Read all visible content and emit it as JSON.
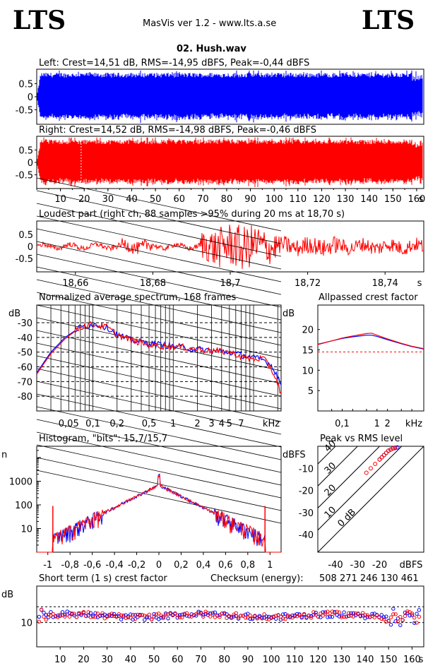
{
  "header": {
    "logo_left": "LTS",
    "logo_right": "LTS",
    "app_title": "MasVis ver 1.2 - www.lts.a.se",
    "file_name": "02. Hush.wav"
  },
  "colors": {
    "left": "#0000ff",
    "right": "#ff0000",
    "grid": "#000000"
  },
  "chart_data": [
    {
      "id": "left-waveform",
      "type": "area",
      "title": "Left: Crest=14,51 dB, RMS=-14,95 dBFS, Peak=-0,44 dBFS",
      "yticks": [
        "0.5",
        "0",
        "-0.5"
      ],
      "ylim": [
        -1,
        1
      ],
      "xlim": [
        0,
        163
      ],
      "peak": 0.95,
      "color": "#0000ff"
    },
    {
      "id": "right-waveform",
      "type": "area",
      "title": "Right: Crest=14,52 dB, RMS=-14,98 dBFS, Peak=-0,46 dBFS",
      "yticks": [
        "0.5",
        "0",
        "-0.5"
      ],
      "ylim": [
        -1,
        1
      ],
      "xlim": [
        0,
        163
      ],
      "xticks": [
        "10",
        "20",
        "30",
        "40",
        "50",
        "60",
        "70",
        "80",
        "90",
        "100",
        "110",
        "120",
        "130",
        "140",
        "150",
        "160"
      ],
      "xunit": "s",
      "marker_x": 18.7,
      "color": "#ff0000"
    },
    {
      "id": "loudest-part",
      "type": "line",
      "title": "Loudest part (right ch, 88 samples >95% during 20 ms at 18,70 s)",
      "yticks": [
        "0.5",
        "0",
        "-0.5"
      ],
      "ylim": [
        -1,
        1
      ],
      "xlim": [
        18.65,
        18.75
      ],
      "xticks": [
        "18,66",
        "18,68",
        "18,7",
        "18,72",
        "18,74"
      ],
      "xunit": "s",
      "color": "#ff0000"
    },
    {
      "id": "avg-spectrum",
      "type": "line",
      "title": "Normalized average spectrum, 168 frames",
      "ylabel": "dB",
      "yticks": [
        "-30",
        "-40",
        "-50",
        "-60",
        "-70",
        "-80"
      ],
      "ylim": [
        -90,
        -18
      ],
      "xticks": [
        "0,05",
        "0,1",
        "0,2",
        "0,5",
        "1",
        "2",
        "3",
        "4",
        "5",
        "7"
      ],
      "xunit": "kHz",
      "xlim": [
        0.02,
        22
      ],
      "series": [
        {
          "name": "left",
          "x": [
            0.02,
            0.03,
            0.045,
            0.07,
            0.1,
            0.15,
            0.2,
            0.3,
            0.5,
            0.7,
            1,
            1.5,
            2,
            3,
            5,
            7,
            10,
            13,
            16,
            19,
            22
          ],
          "values": [
            -64,
            -50,
            -40,
            -33,
            -31,
            -33,
            -38,
            -42,
            -44,
            -45,
            -46,
            -47,
            -48,
            -49,
            -50,
            -52,
            -54,
            -55,
            -58,
            -64,
            -72
          ]
        },
        {
          "name": "right",
          "x": [
            0.02,
            0.03,
            0.045,
            0.07,
            0.1,
            0.15,
            0.2,
            0.3,
            0.5,
            0.7,
            1,
            1.5,
            2,
            3,
            5,
            7,
            10,
            13,
            16,
            19,
            22
          ],
          "values": [
            -65,
            -51,
            -41,
            -33,
            -31,
            -33,
            -38,
            -42,
            -45,
            -46,
            -46,
            -47,
            -48,
            -49,
            -50,
            -53,
            -55,
            -54,
            -60,
            -68,
            -78
          ]
        }
      ]
    },
    {
      "id": "allpassed-crest",
      "type": "line",
      "title": "Allpassed crest factor",
      "ylabel": "dB",
      "yticks": [
        "20",
        "15",
        "10",
        "5"
      ],
      "ylim": [
        0,
        26
      ],
      "xticks": [
        "0,1",
        "1",
        "2"
      ],
      "xunit": "kHz",
      "xlim": [
        0.02,
        22
      ],
      "reference": 14.5,
      "series": [
        {
          "name": "left",
          "x": [
            0.02,
            0.05,
            0.1,
            0.2,
            0.5,
            0.7,
            1,
            2,
            5,
            10,
            22
          ],
          "values": [
            16.4,
            17.2,
            17.8,
            18.2,
            18.6,
            18.6,
            18.3,
            17.5,
            16.5,
            15.8,
            15.2
          ]
        },
        {
          "name": "right",
          "x": [
            0.02,
            0.05,
            0.1,
            0.2,
            0.5,
            0.7,
            1,
            2,
            5,
            10,
            22
          ],
          "values": [
            16.3,
            17.2,
            17.9,
            18.4,
            19.0,
            19.1,
            18.6,
            17.7,
            16.6,
            15.9,
            15.3
          ]
        }
      ]
    },
    {
      "id": "histogram",
      "type": "line",
      "title": "Histogram, \"bits\": 15,7/15,7",
      "ylabel": "n",
      "yticks": [
        "1000",
        "100",
        "10"
      ],
      "ylim": [
        1,
        30000
      ],
      "xticks": [
        "-1",
        "-0,8",
        "-0,6",
        "-0,4",
        "-0,2",
        "0",
        "0,2",
        "0,4",
        "0,6",
        "0,8",
        "1"
      ],
      "xlim": [
        -1.1,
        1.1
      ],
      "series": [
        {
          "name": "left",
          "x": [
            -0.95,
            -0.9,
            -0.8,
            -0.6,
            -0.4,
            -0.2,
            -0.1,
            0,
            0.1,
            0.2,
            0.4,
            0.6,
            0.8,
            0.9,
            0.95
          ],
          "values": [
            3,
            6,
            10,
            25,
            80,
            300,
            500,
            800,
            500,
            300,
            80,
            25,
            10,
            6,
            3
          ]
        },
        {
          "name": "right",
          "x": [
            -0.96,
            -0.9,
            -0.8,
            -0.6,
            -0.4,
            -0.2,
            -0.1,
            0,
            0.1,
            0.2,
            0.4,
            0.6,
            0.8,
            0.9,
            0.96
          ],
          "values": [
            3,
            6,
            10,
            25,
            80,
            300,
            500,
            800,
            500,
            300,
            80,
            25,
            10,
            6,
            3
          ]
        }
      ]
    },
    {
      "id": "peak-vs-rms",
      "type": "scatter",
      "title": "Peak vs RMS level",
      "ylabel": "dBFS",
      "xunit": "dBFS",
      "yticks": [
        "-10",
        "-20",
        "-30",
        "-40"
      ],
      "xticks": [
        "-40",
        "-30",
        "-20"
      ],
      "xlim": [
        -48,
        0
      ],
      "ylim": [
        -48,
        0
      ],
      "diagonals": [
        "0 dB",
        "10",
        "20",
        "30",
        "40"
      ],
      "series": [
        {
          "name": "left",
          "x": [
            -20,
            -19,
            -18,
            -17,
            -16,
            -15,
            -14,
            -13,
            -12
          ],
          "values": [
            -6,
            -5,
            -4,
            -3,
            -2,
            -1.5,
            -1,
            -0.8,
            -0.5
          ]
        },
        {
          "name": "right",
          "x": [
            -26,
            -24,
            -22,
            -20,
            -19,
            -18,
            -17,
            -16,
            -15,
            -14,
            -13
          ],
          "values": [
            -12,
            -10,
            -8,
            -6,
            -5,
            -4,
            -3,
            -2,
            -1.5,
            -1,
            -0.6
          ]
        }
      ]
    },
    {
      "id": "short-term-crest",
      "type": "scatter",
      "title": "Short term (1 s) crest factor",
      "checksum_label": "Checksum (energy):",
      "checksum_value": "508 271 246 130 461",
      "ylabel": "dB",
      "yticks": [
        "10"
      ],
      "ylim": [
        0,
        25
      ],
      "xlim": [
        0,
        165
      ],
      "xticks": [
        "10",
        "20",
        "30",
        "40",
        "50",
        "60",
        "70",
        "80",
        "90",
        "100",
        "110",
        "120",
        "130",
        "140",
        "150",
        "160"
      ],
      "xunit": "s",
      "ref_lines": [
        16.5,
        10
      ]
    }
  ]
}
